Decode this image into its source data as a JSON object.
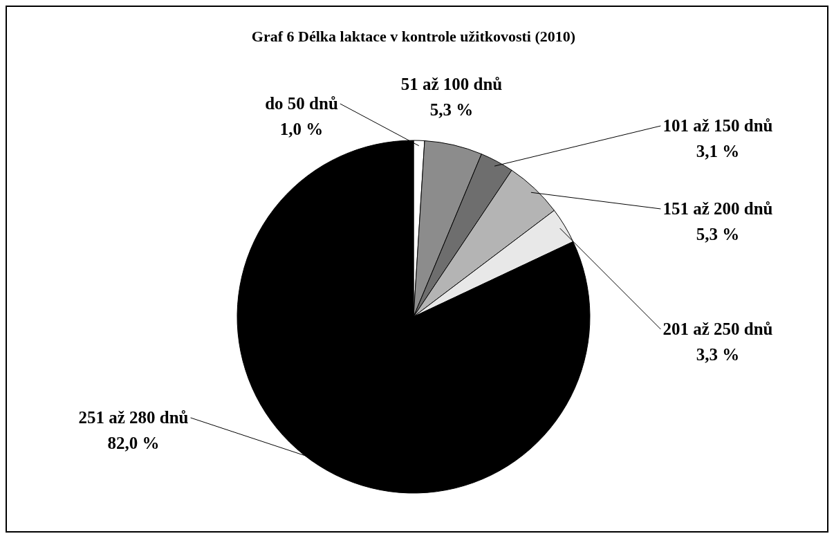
{
  "chart_data": {
    "type": "pie",
    "title": "Graf 6 Délka laktace v kontrole užitkovosti (2010)",
    "categories": [
      "do 50 dnů",
      "51 až 100 dnů",
      "101 až 150 dnů",
      "151 až 200 dnů",
      "201 až 250 dnů",
      "251 až 280 dnů"
    ],
    "values": [
      1.0,
      5.3,
      3.1,
      5.3,
      3.3,
      82.0
    ],
    "colors": [
      "#ffffff",
      "#8c8c8c",
      "#6e6e6e",
      "#b4b4b4",
      "#e8e8e8",
      "#000000"
    ],
    "value_labels": [
      "1,0 %",
      "5,3 %",
      "3,1 %",
      "5,3 %",
      "3,3 %",
      "82,0 %"
    ]
  }
}
